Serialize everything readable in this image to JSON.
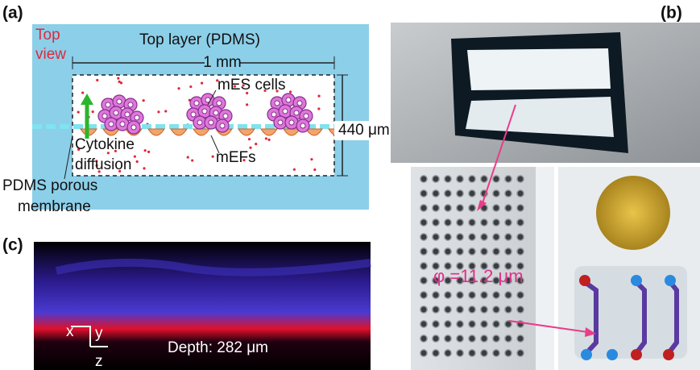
{
  "panel_a": {
    "label": "(a)",
    "top_view": [
      "Top",
      "view"
    ],
    "top_layer": "Top layer (PDMS)",
    "scale": "1 mm",
    "mes_cells": "mES cells",
    "height": "440 μm",
    "cytokine": [
      "Cytokine",
      "diffusion"
    ],
    "mefs": "mEFs",
    "membrane": [
      "PDMS porous",
      "membrane"
    ]
  },
  "panel_b": {
    "label": "(b)",
    "diameter": "φ =11.2 μm"
  },
  "panel_c": {
    "label": "(c)",
    "axes": [
      "x",
      "y",
      "z"
    ],
    "depth": "Depth: 282 μm"
  }
}
